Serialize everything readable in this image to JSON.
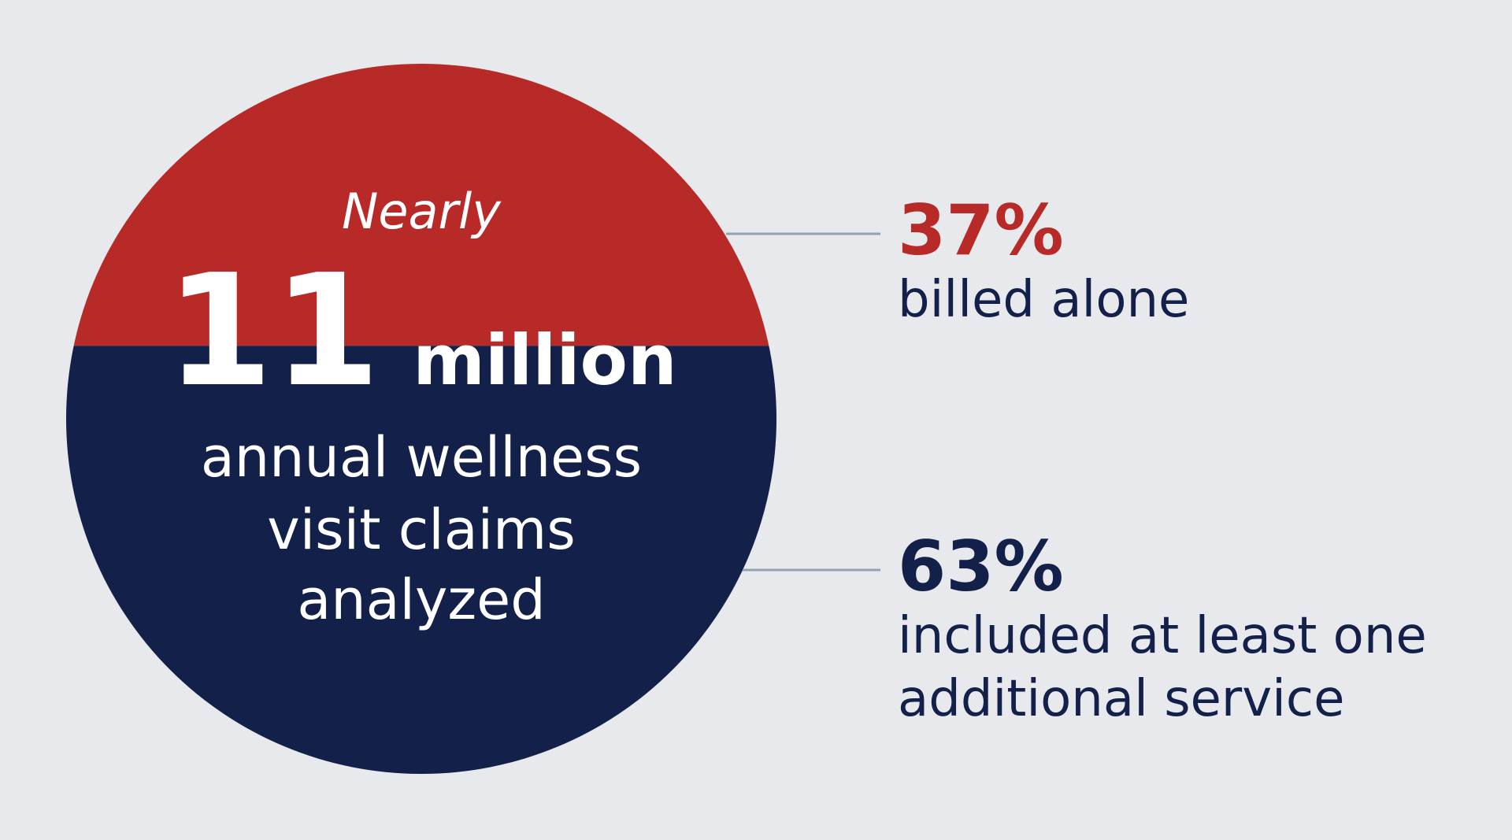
{
  "colors": {
    "background": "#e8e9ed",
    "red": "#b72a27",
    "navy": "#13204a",
    "connector": "#8fa3b2",
    "white": "#ffffff"
  },
  "circle": {
    "qualifier": "Nearly",
    "number": "11",
    "unit": "million",
    "description_lines": [
      "annual wellness",
      "visit claims",
      "analyzed"
    ]
  },
  "chart_data": {
    "type": "pie",
    "total_label": "Nearly 11 million annual wellness visit claims analyzed",
    "slices": [
      {
        "value": 37,
        "label": "billed alone",
        "percent_label": "37%",
        "color": "#b72a27"
      },
      {
        "value": 63,
        "label": "included at least one additional service",
        "percent_label": "63%",
        "color": "#13204a"
      }
    ]
  },
  "callouts": {
    "top": {
      "percent": "37%",
      "label_lines": [
        "billed alone"
      ]
    },
    "bottom": {
      "percent": "63%",
      "label_lines": [
        "included at least one",
        "additional service"
      ]
    }
  }
}
